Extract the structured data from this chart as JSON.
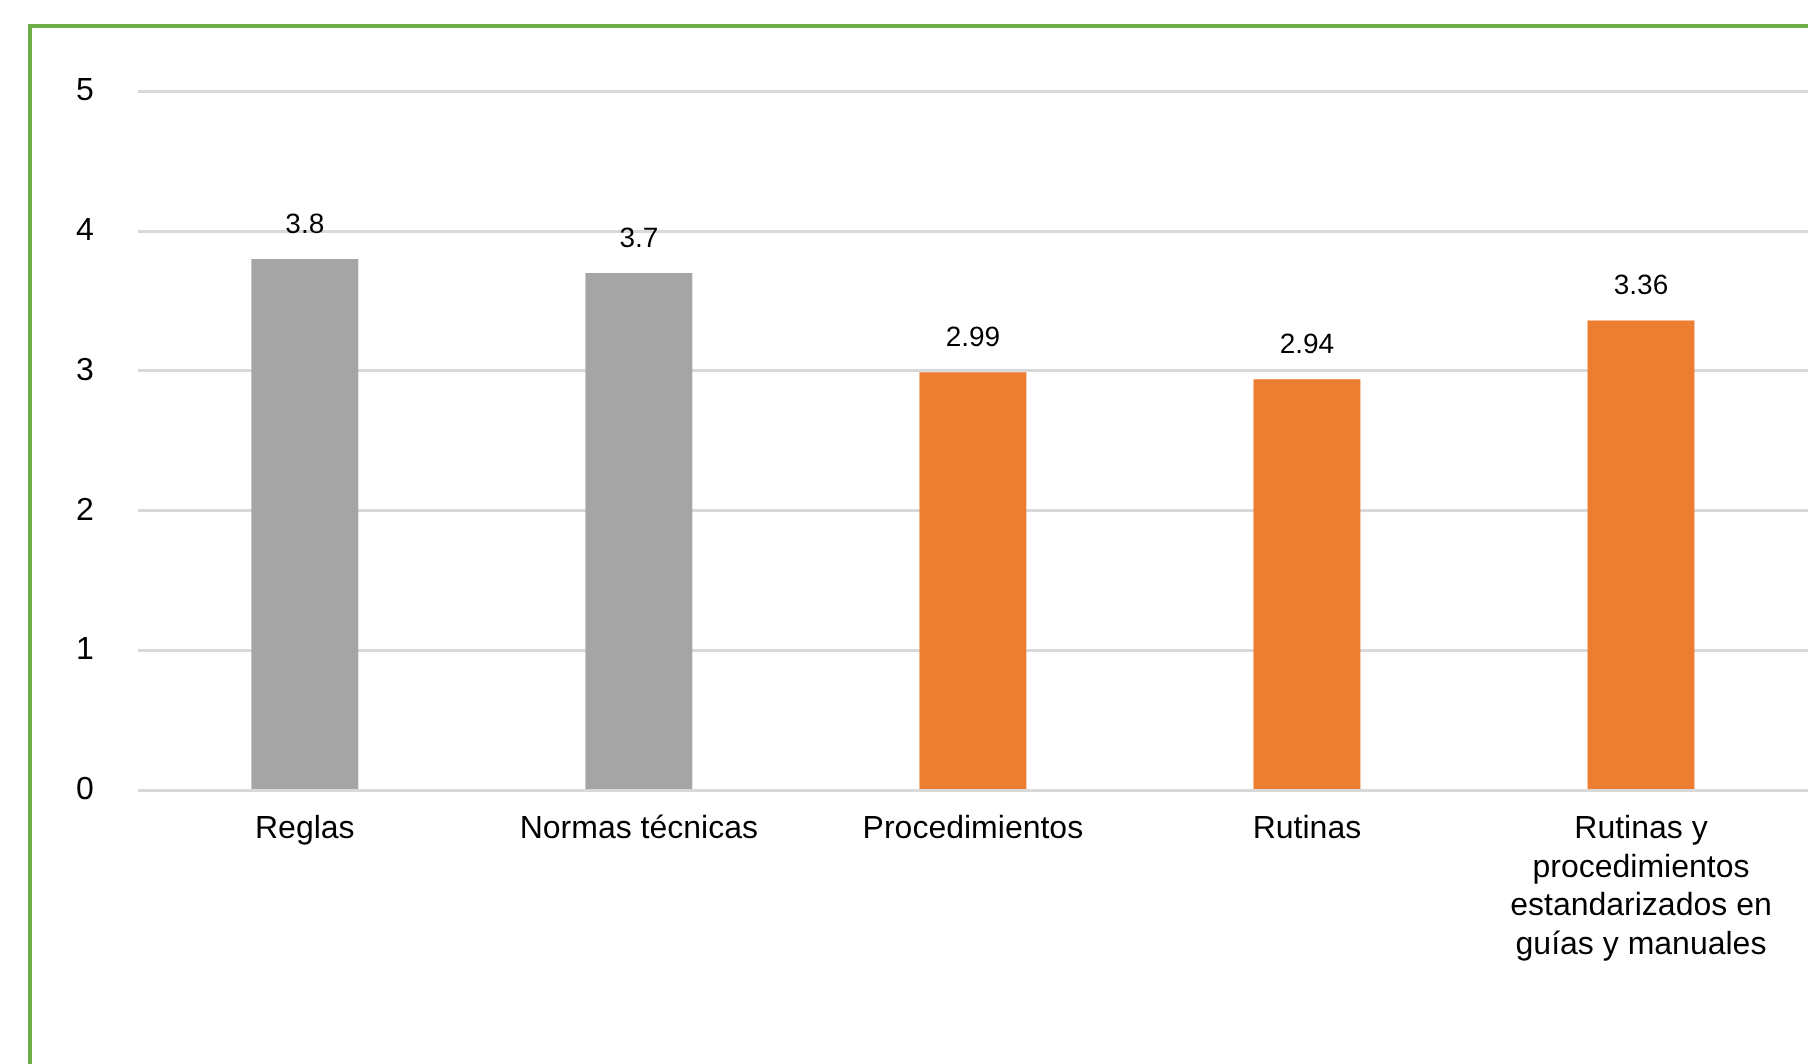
{
  "chart_data": {
    "type": "bar",
    "categories": [
      "Reglas",
      "Normas técnicas",
      "Procedimientos",
      "Rutinas",
      "Rutinas y procedimientos estandarizados en guías y manuales"
    ],
    "values": [
      3.8,
      3.7,
      2.99,
      2.94,
      3.36
    ],
    "colors": [
      "#a5a5a5",
      "#a5a5a5",
      "#ed7d31",
      "#ed7d31",
      "#ed7d31"
    ],
    "ylim": [
      0,
      5
    ],
    "yticks": [
      0,
      1,
      2,
      3,
      4,
      5
    ],
    "grid": "y",
    "data_labels": true,
    "legend": false
  }
}
